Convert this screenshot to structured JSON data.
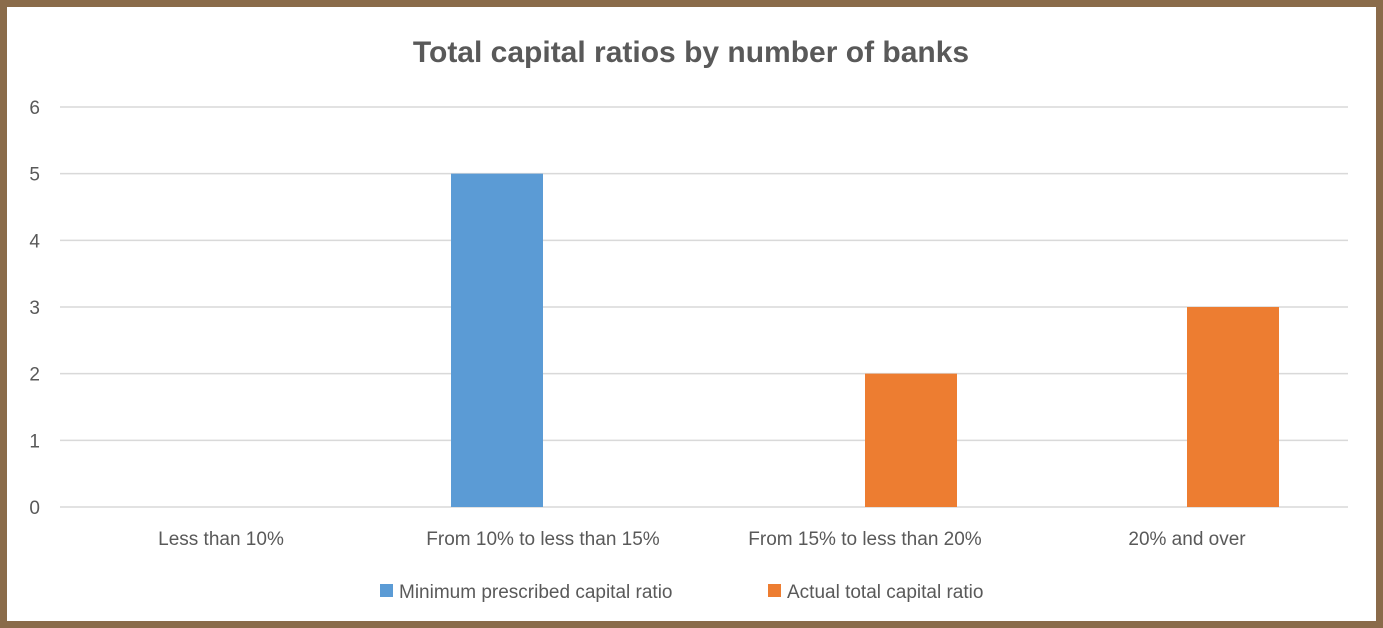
{
  "chart_data": {
    "type": "bar",
    "title": "Total capital ratios by number of banks",
    "xlabel": "",
    "ylabel": "",
    "ylim": [
      0,
      6
    ],
    "yticks": [
      "0",
      "1",
      "2",
      "3",
      "4",
      "5",
      "6"
    ],
    "categories": [
      "Less than 10%",
      "From 10% to less than 15%",
      "From 15% to less than 20%",
      "20% and over"
    ],
    "series": [
      {
        "name": "Minimum prescribed capital ratio",
        "color": "#5b9bd5",
        "values": [
          0,
          5,
          0,
          0
        ]
      },
      {
        "name": "Actual total capital ratio",
        "color": "#ed7d31",
        "values": [
          0,
          0,
          2,
          3
        ]
      }
    ],
    "grid": true,
    "legend_position": "bottom"
  }
}
